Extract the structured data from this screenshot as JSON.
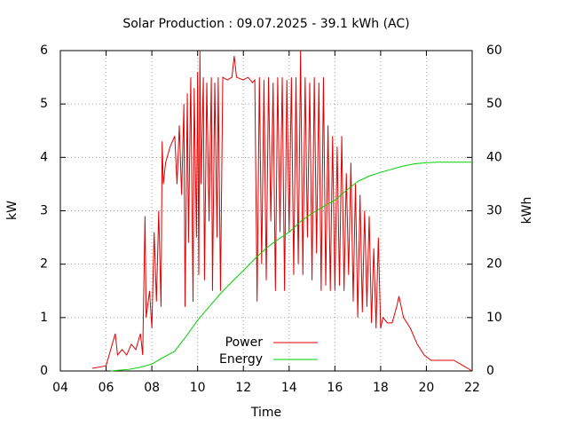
{
  "chart_data": {
    "type": "line",
    "title": "Solar Production : 09.07.2025 - 39.1 kWh (AC)",
    "xlabel": "Time",
    "ylabel": "kW",
    "y2label": "kWh",
    "xlim": [
      4,
      22
    ],
    "xticks": [
      {
        "value": 4,
        "label": "04"
      },
      {
        "value": 6,
        "label": "06"
      },
      {
        "value": 8,
        "label": "08"
      },
      10,
      12,
      14,
      16,
      18,
      20,
      22
    ],
    "ylim": [
      0,
      6
    ],
    "yticks": [
      0,
      1,
      2,
      3,
      4,
      5,
      6
    ],
    "y2lim": [
      0,
      60
    ],
    "y2ticks": [
      0,
      10,
      20,
      30,
      40,
      50,
      60
    ],
    "grid": true,
    "legend": "bottom center",
    "series": [
      {
        "name": "Power",
        "color": "#e00000",
        "x": [
          5.4,
          5.8,
          6.0,
          6.2,
          6.4,
          6.5,
          6.7,
          6.9,
          7.1,
          7.3,
          7.5,
          7.6,
          7.7,
          7.75,
          7.9,
          8.0,
          8.1,
          8.2,
          8.3,
          8.4,
          8.45,
          8.5,
          8.6,
          8.8,
          9.0,
          9.1,
          9.2,
          9.3,
          9.4,
          9.45,
          9.55,
          9.6,
          9.7,
          9.8,
          9.85,
          9.95,
          10.0,
          10.05,
          10.1,
          10.15,
          10.25,
          10.3,
          10.4,
          10.5,
          10.6,
          10.65,
          10.75,
          10.85,
          10.9,
          11.0,
          11.1,
          11.3,
          11.5,
          11.6,
          11.7,
          12.0,
          12.2,
          12.4,
          12.5,
          12.6,
          12.7,
          12.8,
          12.9,
          13.0,
          13.1,
          13.2,
          13.3,
          13.4,
          13.5,
          13.6,
          13.7,
          13.8,
          13.9,
          14.0,
          14.1,
          14.2,
          14.3,
          14.4,
          14.5,
          14.6,
          14.7,
          14.8,
          14.9,
          15.0,
          15.1,
          15.2,
          15.3,
          15.4,
          15.5,
          15.6,
          15.7,
          15.8,
          15.9,
          16.0,
          16.1,
          16.2,
          16.3,
          16.4,
          16.5,
          16.6,
          16.7,
          16.8,
          16.9,
          17.0,
          17.1,
          17.2,
          17.3,
          17.4,
          17.5,
          17.6,
          17.7,
          17.8,
          17.9,
          18.0,
          18.1,
          18.3,
          18.5,
          18.7,
          18.8,
          19.0,
          19.3,
          19.6,
          19.9,
          20.2,
          20.5,
          20.8,
          21.2,
          21.6,
          22.0
        ],
        "values": [
          0.05,
          0.08,
          0.1,
          0.4,
          0.7,
          0.3,
          0.4,
          0.3,
          0.5,
          0.4,
          0.7,
          0.3,
          2.9,
          1.0,
          1.5,
          0.8,
          2.6,
          1.3,
          3.0,
          1.2,
          4.3,
          3.5,
          3.9,
          4.2,
          4.4,
          3.5,
          4.6,
          3.3,
          5.0,
          1.2,
          5.2,
          2.4,
          5.5,
          1.3,
          5.3,
          2.5,
          5.6,
          1.8,
          6.0,
          3.5,
          5.5,
          1.7,
          5.4,
          2.8,
          5.5,
          1.5,
          5.4,
          2.5,
          5.5,
          1.5,
          5.5,
          5.45,
          5.5,
          5.9,
          5.5,
          5.45,
          5.5,
          5.4,
          5.45,
          1.3,
          5.5,
          2.0,
          5.45,
          1.7,
          5.5,
          2.8,
          5.4,
          1.5,
          5.5,
          2.6,
          5.5,
          1.5,
          5.45,
          2.6,
          5.5,
          1.8,
          5.5,
          2.0,
          6.0,
          1.8,
          5.5,
          2.5,
          5.4,
          1.7,
          5.5,
          2.2,
          5.4,
          1.5,
          5.5,
          1.6,
          4.6,
          1.5,
          4.4,
          1.5,
          4.2,
          1.6,
          4.4,
          1.5,
          3.7,
          1.8,
          3.9,
          1.3,
          3.5,
          1.0,
          3.3,
          1.1,
          3.0,
          1.2,
          2.9,
          0.9,
          2.3,
          0.8,
          2.5,
          0.8,
          1.0,
          0.9,
          0.9,
          1.2,
          1.4,
          1.0,
          0.8,
          0.5,
          0.3,
          0.2,
          0.2,
          0.2,
          0.2,
          0.1,
          0.0
        ]
      },
      {
        "name": "Energy",
        "color": "#00d000",
        "axis": "y2",
        "x": [
          6.2,
          7.0,
          7.5,
          8.0,
          8.4,
          9.0,
          9.5,
          10.0,
          10.5,
          11.0,
          11.5,
          12.0,
          12.5,
          13.0,
          13.5,
          14.0,
          14.5,
          15.0,
          15.5,
          16.0,
          16.5,
          17.0,
          17.5,
          18.0,
          18.5,
          19.0,
          19.5,
          20.0,
          20.5,
          21.5,
          22.0
        ],
        "values": [
          0,
          0.3,
          0.7,
          1.3,
          2.3,
          3.7,
          6.5,
          9.5,
          12,
          14.5,
          16.7,
          18.8,
          21,
          23,
          24.6,
          26,
          28,
          29.5,
          30.8,
          32,
          33.8,
          35.5,
          36.5,
          37.2,
          37.8,
          38.4,
          38.8,
          39,
          39.1,
          39.1,
          39.1
        ]
      }
    ]
  }
}
